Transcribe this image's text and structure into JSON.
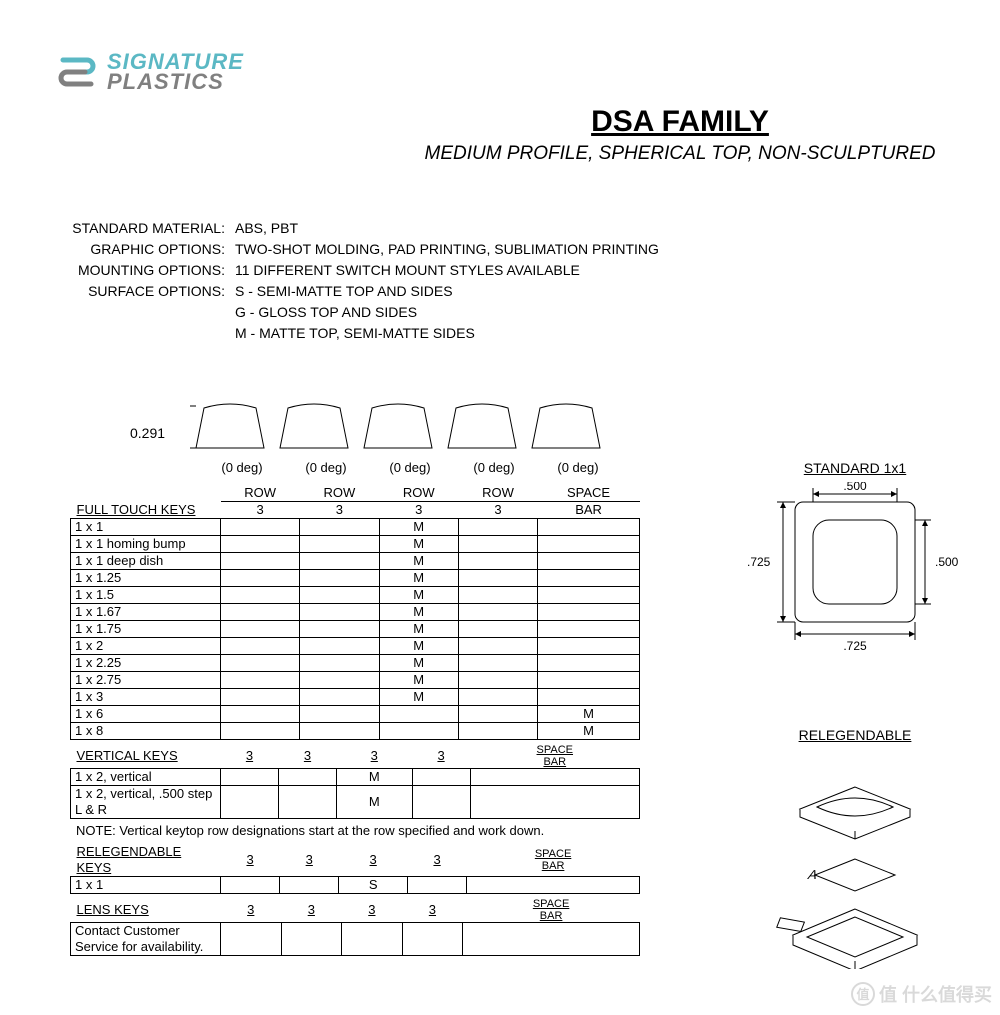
{
  "logo": {
    "line1": "SIGNATURE",
    "line2": "PLASTICS"
  },
  "title": "DSA FAMILY",
  "subtitle": "MEDIUM PROFILE, SPHERICAL TOP, NON-SCULPTURED",
  "specs": [
    {
      "label": "STANDARD MATERIAL:",
      "value": "ABS, PBT"
    },
    {
      "label": "GRAPHIC OPTIONS:",
      "value": "TWO-SHOT MOLDING, PAD PRINTING, SUBLIMATION PRINTING"
    },
    {
      "label": "MOUNTING OPTIONS:",
      "value": "11 DIFFERENT SWITCH MOUNT STYLES AVAILABLE"
    },
    {
      "label": "SURFACE OPTIONS:",
      "value": "S - SEMI-MATTE TOP AND SIDES"
    },
    {
      "label": "",
      "value": "G - GLOSS TOP AND SIDES"
    },
    {
      "label": "",
      "value": "M - MATTE TOP, SEMI-MATTE SIDES"
    }
  ],
  "profile": {
    "height_dim": "0.291",
    "degrees": [
      "(0 deg)",
      "(0 deg)",
      "(0 deg)",
      "(0 deg)",
      "(0 deg)"
    ],
    "cap_outline_color": "#000000",
    "cap_fill": "none",
    "stroke_width": 1
  },
  "table_columns": {
    "header_top": [
      "ROW",
      "ROW",
      "ROW",
      "ROW",
      "SPACE"
    ],
    "header_bottom": [
      "3",
      "3",
      "3",
      "3",
      "BAR"
    ]
  },
  "full_touch": {
    "title": "FULL TOUCH KEYS",
    "rows": [
      {
        "name": "1 x 1",
        "vals": [
          "",
          "",
          "M",
          "",
          ""
        ]
      },
      {
        "name": "1 x 1 homing bump",
        "vals": [
          "",
          "",
          "M",
          "",
          ""
        ]
      },
      {
        "name": "1 x 1 deep dish",
        "vals": [
          "",
          "",
          "M",
          "",
          ""
        ]
      },
      {
        "name": "1 x 1.25",
        "vals": [
          "",
          "",
          "M",
          "",
          ""
        ]
      },
      {
        "name": "1 x 1.5",
        "vals": [
          "",
          "",
          "M",
          "",
          ""
        ]
      },
      {
        "name": "1 x 1.67",
        "vals": [
          "",
          "",
          "M",
          "",
          ""
        ]
      },
      {
        "name": "1 x 1.75",
        "vals": [
          "",
          "",
          "M",
          "",
          ""
        ]
      },
      {
        "name": "1 x 2",
        "vals": [
          "",
          "",
          "M",
          "",
          ""
        ]
      },
      {
        "name": "1 x 2.25",
        "vals": [
          "",
          "",
          "M",
          "",
          ""
        ]
      },
      {
        "name": "1 x 2.75",
        "vals": [
          "",
          "",
          "M",
          "",
          ""
        ]
      },
      {
        "name": "1 x 3",
        "vals": [
          "",
          "",
          "M",
          "",
          ""
        ]
      },
      {
        "name": "1 x 6",
        "vals": [
          "",
          "",
          "",
          "",
          "M"
        ]
      },
      {
        "name": "1 x 8",
        "vals": [
          "",
          "",
          "",
          "",
          "M"
        ]
      }
    ]
  },
  "vertical": {
    "title": "VERTICAL KEYS",
    "header": [
      "3",
      "3",
      "3",
      "3",
      "SPACE BAR"
    ],
    "rows": [
      {
        "name": "1 x 2, vertical",
        "vals": [
          "",
          "",
          "M",
          "",
          ""
        ]
      },
      {
        "name": "1 x 2, vertical, .500 step L & R",
        "vals": [
          "",
          "",
          "M",
          "",
          ""
        ]
      }
    ],
    "note": "NOTE: Vertical keytop row designations start at the row specified and work down."
  },
  "relegendable": {
    "title": "RELEGENDABLE KEYS",
    "header": [
      "3",
      "3",
      "3",
      "3",
      "SPACE BAR"
    ],
    "rows": [
      {
        "name": "1 x 1",
        "vals": [
          "",
          "",
          "S",
          "",
          ""
        ]
      }
    ]
  },
  "lens": {
    "title": "LENS KEYS",
    "header": [
      "3",
      "3",
      "3",
      "3",
      "SPACE BAR"
    ],
    "rows": [
      {
        "name": "Contact Customer Service for availability.",
        "vals": [
          "",
          "",
          "",
          "",
          ""
        ]
      }
    ]
  },
  "standard_diagram": {
    "title": "STANDARD 1x1",
    "dim_top": ".500",
    "dim_right": ".500",
    "dim_left": ".725",
    "dim_bottom": ".725",
    "stroke": "#000000",
    "fill": "#ffffff"
  },
  "relegendable_diagram": {
    "title": "RELEGENDABLE",
    "label_letter": "A",
    "stroke": "#000000"
  },
  "watermark": "值 什么值得买",
  "colors": {
    "text": "#000000",
    "logo_teal": "#5bb8c4",
    "logo_gray": "#808080",
    "background": "#ffffff"
  },
  "typography": {
    "title_fontsize": 30,
    "subtitle_fontsize": 19,
    "body_fontsize": 14,
    "table_fontsize": 13
  }
}
